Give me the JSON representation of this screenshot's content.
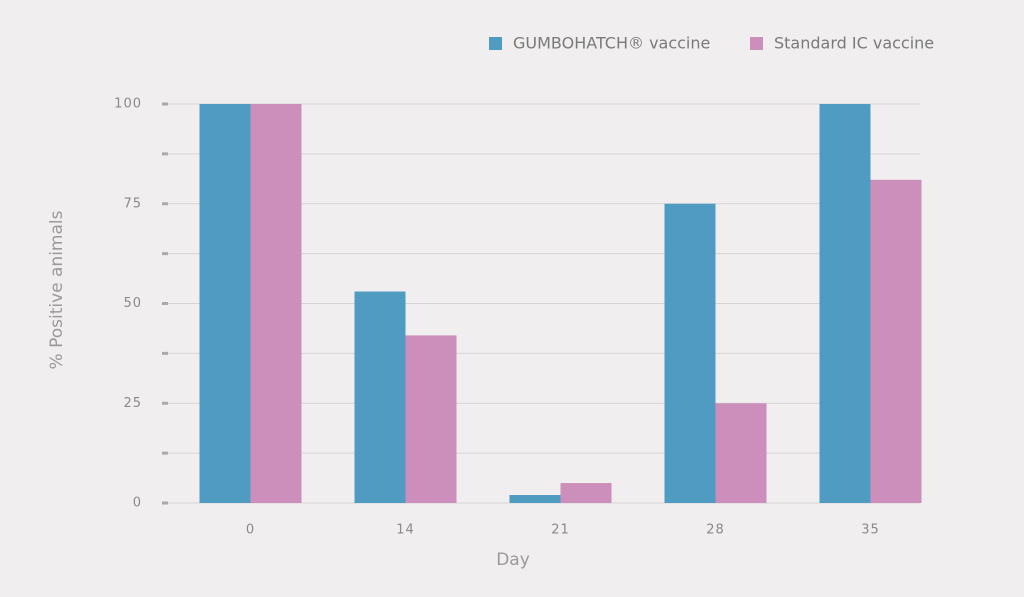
{
  "chart_data": {
    "type": "bar",
    "x_label": "Day",
    "y_label": "% Positive animals",
    "categories": [
      "0",
      "14",
      "21",
      "28",
      "35"
    ],
    "series": [
      {
        "name": "GUMBOHATCH® vaccine",
        "color": "#4f9bc1",
        "values": [
          100,
          53,
          2,
          75,
          100
        ]
      },
      {
        "name": "Standard IC vaccine",
        "color": "#cc8fbc",
        "values": [
          100,
          42,
          5,
          25,
          81
        ]
      }
    ],
    "ylim": [
      0,
      100
    ],
    "yticks": [
      0,
      25,
      50,
      75,
      100
    ],
    "minor_yticks": [
      12.5,
      37.5,
      62.5,
      87.5
    ],
    "grid": true
  }
}
